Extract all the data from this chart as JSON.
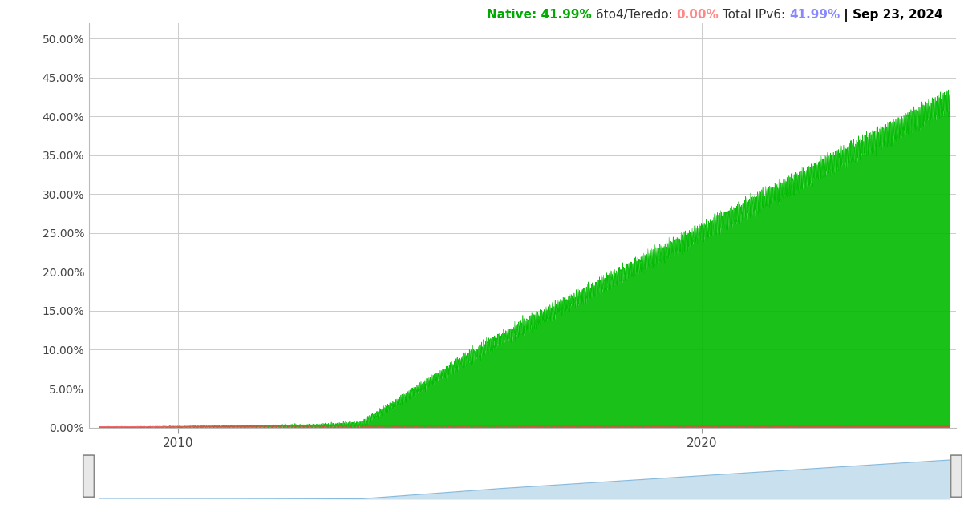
{
  "ylim": [
    0,
    0.52
  ],
  "yticks": [
    0.0,
    0.05,
    0.1,
    0.15,
    0.2,
    0.25,
    0.3,
    0.35,
    0.4,
    0.45,
    0.5
  ],
  "ytick_labels": [
    "0.00%",
    "5.00%",
    "10.00%",
    "15.00%",
    "20.00%",
    "25.00%",
    "30.00%",
    "35.00%",
    "40.00%",
    "45.00%",
    "50.00%"
  ],
  "xlim_start": 2008.3,
  "xlim_end": 2024.85,
  "xtick_years": [
    2010,
    2020
  ],
  "native_color": "#00bb00",
  "teredo_color": "#ee4444",
  "minimap_bg": "#ddeeff",
  "minimap_line_color": "#88bbdd",
  "bg_color": "#ffffff",
  "grid_color": "#cccccc",
  "title_native": "Native: 41.99%",
  "title_native_color": "#00aa00",
  "title_teredo": " 6to4/Teredo: ",
  "title_teredo_label": "0.00%",
  "title_teredo_color": "#ff8888",
  "title_total": " Total IPv6: ",
  "title_total_label": "41.99%",
  "title_total_color": "#8888ff",
  "title_date": " | Sep 23, 2024",
  "title_date_color": "#000000"
}
